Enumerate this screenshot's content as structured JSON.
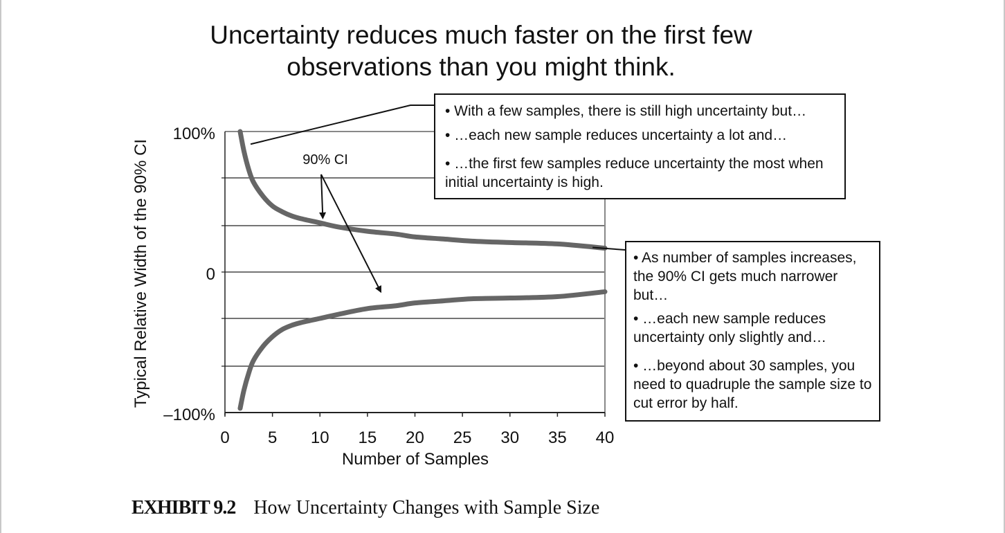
{
  "title": "Uncertainty reduces much faster on the first few observations than you might think.",
  "caption": {
    "label": "EXHIBIT 9.2",
    "text": "How Uncertainty Changes with Sample Size"
  },
  "annotation_ci": "90% CI",
  "callouts": {
    "top": [
      "• With a few samples, there is still high uncertainty but…",
      "• …each new sample reduces uncertainty a lot and…",
      "• …the first few samples reduce uncertainty the most when initial uncertainty is high."
    ],
    "right": [
      "• As number of samples increases, the 90% CI gets much narrower but…",
      "• …each new sample reduces uncertainty only slightly and…",
      "• …beyond about 30 samples, you need to quadruple the sample size to cut error by half."
    ]
  },
  "colors": {
    "curve": "#666666",
    "grid": "#222222",
    "frame": "#888888"
  },
  "chart_data": {
    "type": "line",
    "title": "Uncertainty reduces much faster on the first few observations than you might think.",
    "xlabel": "Number of Samples",
    "ylabel": "Typical Relative Width of the 90% CI",
    "xlim": [
      0,
      40
    ],
    "ylim": [
      -100,
      100
    ],
    "x_ticks": [
      "0",
      "5",
      "10",
      "15",
      "20",
      "25",
      "30",
      "35",
      "40"
    ],
    "y_tick_labels": [
      {
        "value": 100,
        "label": "100%"
      },
      {
        "value": 0,
        "label": "0"
      },
      {
        "value": -100,
        "label": "–100%"
      }
    ],
    "gridlines_y": [
      100,
      67,
      33,
      0,
      -33,
      -67
    ],
    "grid": true,
    "legend": "none",
    "series": [
      {
        "x": [
          1.6,
          2,
          2.5,
          3,
          4,
          5,
          6,
          7,
          8,
          10,
          12,
          15,
          18,
          20,
          23,
          26,
          30,
          35,
          40
        ],
        "values": [
          100,
          86,
          73,
          64,
          54,
          47,
          43,
          40,
          38,
          35,
          32,
          29,
          27,
          25,
          23.5,
          22,
          21,
          20,
          17
        ]
      },
      {
        "x": [
          1.6,
          2,
          2.5,
          3,
          4,
          5,
          6,
          7,
          8,
          10,
          12,
          15,
          18,
          20,
          23,
          26,
          30,
          35,
          40
        ],
        "values": [
          -97,
          -84,
          -72,
          -63,
          -53,
          -46,
          -41,
          -38,
          -36,
          -33,
          -30,
          -26,
          -24,
          -22,
          -20.5,
          -19,
          -18.5,
          -17.5,
          -14
        ]
      }
    ]
  }
}
